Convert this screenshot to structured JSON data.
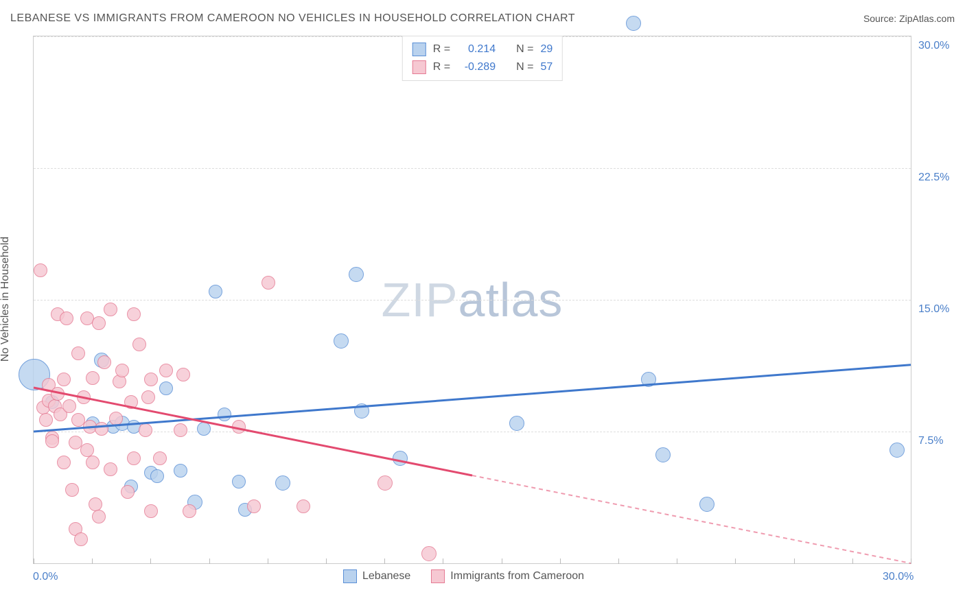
{
  "chart": {
    "title": "LEBANESE VS IMMIGRANTS FROM CAMEROON NO VEHICLES IN HOUSEHOLD CORRELATION CHART",
    "source_label": "Source: ZipAtlas.com",
    "watermark_zip": "ZIP",
    "watermark_atlas": "atlas",
    "ylabel": "No Vehicles in Household",
    "x_min": 0.0,
    "x_max": 30.0,
    "y_min": 0.0,
    "y_max": 30.0,
    "x_start_label": "0.0%",
    "x_end_label": "30.0%",
    "y_ticks": [
      {
        "v": 7.5,
        "label": "7.5%"
      },
      {
        "v": 15.0,
        "label": "15.0%"
      },
      {
        "v": 22.5,
        "label": "22.5%"
      },
      {
        "v": 30.0,
        "label": "30.0%"
      }
    ],
    "x_tick_positions": [
      0,
      2,
      4,
      6,
      8,
      10,
      12,
      14,
      16,
      18,
      20,
      22,
      24,
      26,
      28,
      30
    ],
    "grid_color": "#dddddd",
    "border_color": "#cccccc",
    "series": [
      {
        "key": "lebanese",
        "name": "Lebanese",
        "fill": "#b9d2ee",
        "stroke": "#5a8fd6",
        "line_color": "#3f78cc",
        "R_label": "R =",
        "R_value": "0.214",
        "N_label": "N =",
        "N_value": "29",
        "regression": {
          "x1": 0,
          "y1": 7.5,
          "x2": 30,
          "y2": 11.3,
          "solid_until_x": 30
        },
        "points": [
          {
            "x": 0.0,
            "y": 10.8,
            "r": 22
          },
          {
            "x": 2.3,
            "y": 11.6,
            "r": 10
          },
          {
            "x": 2.7,
            "y": 7.8,
            "r": 9
          },
          {
            "x": 3.0,
            "y": 8.0,
            "r": 10
          },
          {
            "x": 3.3,
            "y": 4.4,
            "r": 9
          },
          {
            "x": 4.0,
            "y": 5.2,
            "r": 9
          },
          {
            "x": 4.2,
            "y": 5.0,
            "r": 9
          },
          {
            "x": 4.5,
            "y": 10.0,
            "r": 9
          },
          {
            "x": 5.0,
            "y": 5.3,
            "r": 9
          },
          {
            "x": 5.5,
            "y": 3.5,
            "r": 10
          },
          {
            "x": 6.2,
            "y": 15.5,
            "r": 9
          },
          {
            "x": 6.5,
            "y": 8.5,
            "r": 9
          },
          {
            "x": 7.0,
            "y": 4.7,
            "r": 9
          },
          {
            "x": 7.2,
            "y": 3.1,
            "r": 9
          },
          {
            "x": 8.5,
            "y": 4.6,
            "r": 10
          },
          {
            "x": 10.5,
            "y": 12.7,
            "r": 10
          },
          {
            "x": 11.0,
            "y": 16.5,
            "r": 10
          },
          {
            "x": 11.2,
            "y": 8.7,
            "r": 10
          },
          {
            "x": 12.5,
            "y": 6.0,
            "r": 10
          },
          {
            "x": 16.5,
            "y": 8.0,
            "r": 10
          },
          {
            "x": 20.5,
            "y": 30.8,
            "r": 10
          },
          {
            "x": 21.0,
            "y": 10.5,
            "r": 10
          },
          {
            "x": 21.5,
            "y": 6.2,
            "r": 10
          },
          {
            "x": 23.0,
            "y": 3.4,
            "r": 10
          },
          {
            "x": 29.5,
            "y": 6.5,
            "r": 10
          },
          {
            "x": 3.4,
            "y": 7.8,
            "r": 9
          },
          {
            "x": 2.0,
            "y": 8.0,
            "r": 9
          },
          {
            "x": 0.6,
            "y": 9.2,
            "r": 9
          },
          {
            "x": 5.8,
            "y": 7.7,
            "r": 9
          }
        ]
      },
      {
        "key": "cameroon",
        "name": "Immigrants from Cameroon",
        "fill": "#f6c8d2",
        "stroke": "#e57a93",
        "line_color": "#e34a6f",
        "R_label": "R =",
        "R_value": "-0.289",
        "N_label": "N =",
        "N_value": "57",
        "regression": {
          "x1": 0,
          "y1": 10.0,
          "x2": 30,
          "y2": 0.0,
          "solid_until_x": 15
        },
        "points": [
          {
            "x": 0.2,
            "y": 16.7,
            "r": 9
          },
          {
            "x": 0.3,
            "y": 8.9,
            "r": 9
          },
          {
            "x": 0.4,
            "y": 8.2,
            "r": 9
          },
          {
            "x": 0.5,
            "y": 9.3,
            "r": 9
          },
          {
            "x": 0.5,
            "y": 10.2,
            "r": 9
          },
          {
            "x": 0.6,
            "y": 7.2,
            "r": 9
          },
          {
            "x": 0.7,
            "y": 9.0,
            "r": 9
          },
          {
            "x": 0.8,
            "y": 9.7,
            "r": 9
          },
          {
            "x": 0.8,
            "y": 14.2,
            "r": 9
          },
          {
            "x": 0.9,
            "y": 8.5,
            "r": 9
          },
          {
            "x": 1.0,
            "y": 10.5,
            "r": 9
          },
          {
            "x": 1.0,
            "y": 5.8,
            "r": 9
          },
          {
            "x": 1.1,
            "y": 14.0,
            "r": 9
          },
          {
            "x": 1.2,
            "y": 9.0,
            "r": 9
          },
          {
            "x": 1.3,
            "y": 4.2,
            "r": 9
          },
          {
            "x": 1.4,
            "y": 6.9,
            "r": 9
          },
          {
            "x": 1.4,
            "y": 2.0,
            "r": 9
          },
          {
            "x": 1.5,
            "y": 8.2,
            "r": 9
          },
          {
            "x": 1.5,
            "y": 12.0,
            "r": 9
          },
          {
            "x": 1.6,
            "y": 1.4,
            "r": 9
          },
          {
            "x": 1.7,
            "y": 9.5,
            "r": 9
          },
          {
            "x": 1.8,
            "y": 6.5,
            "r": 9
          },
          {
            "x": 1.8,
            "y": 14.0,
            "r": 9
          },
          {
            "x": 1.9,
            "y": 7.8,
            "r": 9
          },
          {
            "x": 2.0,
            "y": 10.6,
            "r": 9
          },
          {
            "x": 2.0,
            "y": 5.8,
            "r": 9
          },
          {
            "x": 2.1,
            "y": 3.4,
            "r": 9
          },
          {
            "x": 2.2,
            "y": 2.7,
            "r": 9
          },
          {
            "x": 2.2,
            "y": 13.7,
            "r": 9
          },
          {
            "x": 2.3,
            "y": 7.7,
            "r": 9
          },
          {
            "x": 2.4,
            "y": 11.5,
            "r": 9
          },
          {
            "x": 2.6,
            "y": 5.4,
            "r": 9
          },
          {
            "x": 2.6,
            "y": 14.5,
            "r": 9
          },
          {
            "x": 2.8,
            "y": 8.3,
            "r": 9
          },
          {
            "x": 2.9,
            "y": 10.4,
            "r": 9
          },
          {
            "x": 3.0,
            "y": 11.0,
            "r": 9
          },
          {
            "x": 3.2,
            "y": 4.1,
            "r": 9
          },
          {
            "x": 3.3,
            "y": 9.2,
            "r": 9
          },
          {
            "x": 3.4,
            "y": 6.0,
            "r": 9
          },
          {
            "x": 3.4,
            "y": 14.2,
            "r": 9
          },
          {
            "x": 3.6,
            "y": 12.5,
            "r": 9
          },
          {
            "x": 3.8,
            "y": 7.6,
            "r": 9
          },
          {
            "x": 3.9,
            "y": 9.5,
            "r": 9
          },
          {
            "x": 4.0,
            "y": 10.5,
            "r": 9
          },
          {
            "x": 4.0,
            "y": 3.0,
            "r": 9
          },
          {
            "x": 4.3,
            "y": 6.0,
            "r": 9
          },
          {
            "x": 4.5,
            "y": 11.0,
            "r": 9
          },
          {
            "x": 5.0,
            "y": 7.6,
            "r": 9
          },
          {
            "x": 5.1,
            "y": 10.8,
            "r": 9
          },
          {
            "x": 5.3,
            "y": 3.0,
            "r": 9
          },
          {
            "x": 7.0,
            "y": 7.8,
            "r": 9
          },
          {
            "x": 7.5,
            "y": 3.3,
            "r": 9
          },
          {
            "x": 8.0,
            "y": 16.0,
            "r": 9
          },
          {
            "x": 9.2,
            "y": 3.3,
            "r": 9
          },
          {
            "x": 12.0,
            "y": 4.6,
            "r": 10
          },
          {
            "x": 13.5,
            "y": 0.6,
            "r": 10
          },
          {
            "x": 0.6,
            "y": 7.0,
            "r": 9
          }
        ]
      }
    ]
  }
}
